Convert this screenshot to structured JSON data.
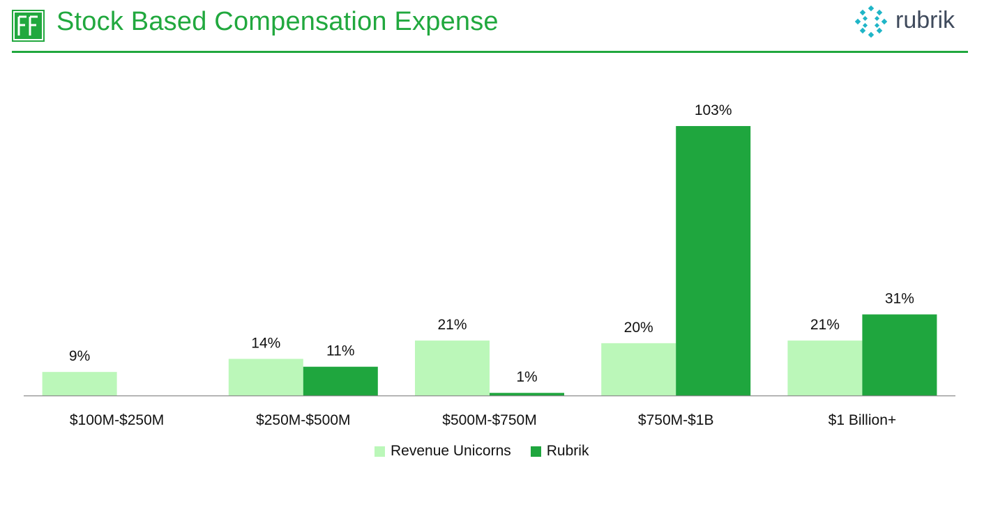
{
  "header": {
    "title": "Stock Based Compensation Expense",
    "ff_logo_icon": "ff-logo-icon",
    "brand_word": "rubrik",
    "brand_icon": "rubrik-logo-icon"
  },
  "colors": {
    "accent": "#21a83e",
    "series_light": "#bbf7b9",
    "series_dark": "#1fa63e"
  },
  "chart_data": {
    "type": "bar",
    "title": "Stock Based Compensation Expense",
    "categories": [
      "$100M-$250M",
      "$250M-$500M",
      "$500M-$750M",
      "$750M-$1B",
      "$1 Billion+"
    ],
    "series": [
      {
        "name": "Revenue Unicorns",
        "values": [
          9,
          14,
          21,
          20,
          21
        ],
        "labels": [
          "9%",
          "14%",
          "21%",
          "20%",
          "21%"
        ]
      },
      {
        "name": "Rubrik",
        "values": [
          null,
          11,
          1,
          103,
          31
        ],
        "labels": [
          "",
          "11%",
          "1%",
          "103%",
          "31%"
        ]
      }
    ],
    "ylim": [
      0,
      110
    ],
    "grid": false,
    "legend": "bottom"
  }
}
